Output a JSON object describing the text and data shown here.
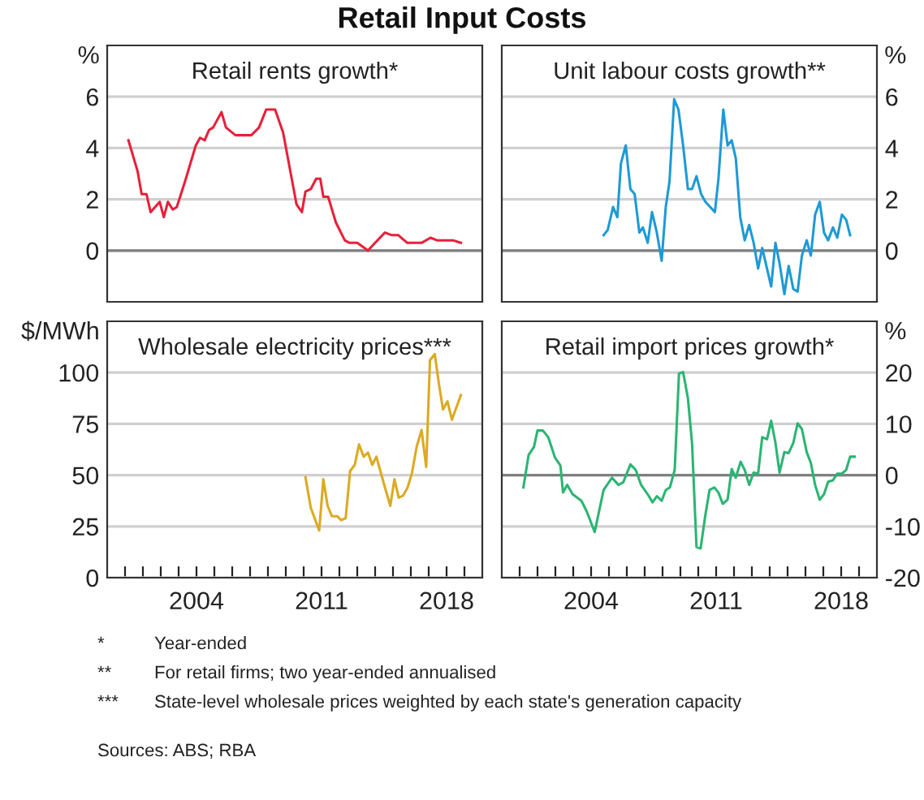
{
  "chart_data": [
    {
      "type": "line",
      "title": "Retail rents growth*",
      "ylabel": "%",
      "annotations": [
        "Retail Input Costs"
      ],
      "series": [
        {
          "color": "#e8203a",
          "x": [
            2000.19,
            2000.7,
            2000.93,
            2001.2,
            2001.43,
            2001.94,
            2002.17,
            2002.4,
            2002.67,
            2002.9,
            2003.36,
            2003.96,
            2004.2,
            2004.46,
            2004.7,
            2004.93,
            2005.4,
            2005.65,
            2006.18,
            2007.07,
            2007.5,
            2007.9,
            2008.4,
            2008.85,
            2009.6,
            2009.9,
            2010.1,
            2010.4,
            2010.7,
            2010.93,
            2011.1,
            2011.37,
            2011.8,
            2012.3,
            2012.56,
            2013.0,
            2013.6,
            2014.0,
            2014.55,
            2014.93,
            2015.3,
            2015.8,
            2016.6,
            2017.1,
            2017.46,
            2017.9,
            2018.35,
            2018.8
          ],
          "values": [
            4.3,
            3.1,
            2.2,
            2.2,
            1.5,
            1.9,
            1.3,
            1.9,
            1.6,
            1.7,
            2.7,
            4.1,
            4.4,
            4.3,
            4.7,
            4.8,
            5.4,
            4.8,
            4.5,
            4.5,
            4.8,
            5.5,
            5.5,
            4.6,
            1.8,
            1.5,
            2.3,
            2.4,
            2.8,
            2.8,
            2.1,
            2.1,
            1.1,
            0.4,
            0.3,
            0.3,
            0.0,
            0.3,
            0.7,
            0.6,
            0.6,
            0.3,
            0.3,
            0.5,
            0.4,
            0.4,
            0.4,
            0.3
          ]
        }
      ],
      "xlim": [
        1999,
        2020
      ],
      "ylim": [
        -2,
        8
      ],
      "yticks": [
        0,
        2,
        4,
        6
      ],
      "grid": "y",
      "tick_labels": "y",
      "ref_lines": [
        {
          "axis": "y",
          "value": 0,
          "color": "#808080"
        }
      ]
    },
    {
      "type": "line",
      "title": "Unit labour costs growth**",
      "ylabel": "%",
      "series": [
        {
          "color": "#1e9ad6",
          "x": [
            2004.7,
            2004.93,
            2005.23,
            2005.47,
            2005.67,
            2005.94,
            2006.2,
            2006.44,
            2006.7,
            2006.9,
            2007.17,
            2007.41,
            2007.68,
            2007.95,
            2008.18,
            2008.39,
            2008.65,
            2008.89,
            2009.15,
            2009.42,
            2009.65,
            2009.9,
            2010.16,
            2010.4,
            2010.93,
            2011.13,
            2011.4,
            2011.64,
            2011.87,
            2012.1,
            2012.35,
            2012.6,
            2012.85,
            2013.1,
            2013.35,
            2013.58,
            2014.08,
            2014.32,
            2014.55,
            2014.82,
            2015.06,
            2015.32,
            2015.56,
            2015.8,
            2016.07,
            2016.3,
            2016.54,
            2016.8,
            2017.04,
            2017.27,
            2017.54,
            2017.78,
            2018.04,
            2018.28,
            2018.5
          ],
          "values": [
            0.6,
            0.8,
            1.7,
            1.3,
            3.4,
            4.1,
            2.4,
            2.2,
            0.7,
            0.9,
            0.3,
            1.5,
            0.7,
            -0.4,
            1.7,
            2.7,
            5.9,
            5.5,
            4.1,
            2.4,
            2.4,
            2.9,
            2.2,
            1.9,
            1.5,
            2.8,
            5.5,
            4.1,
            4.3,
            3.6,
            1.3,
            0.4,
            1.0,
            0.3,
            -0.7,
            0.1,
            -1.4,
            0.3,
            -0.5,
            -1.7,
            -0.6,
            -1.5,
            -1.6,
            -0.2,
            0.4,
            -0.2,
            1.4,
            1.9,
            0.7,
            0.4,
            0.9,
            0.5,
            1.4,
            1.2,
            0.6
          ]
        }
      ],
      "xlim": [
        1999,
        2020
      ],
      "ylim": [
        -2,
        8
      ],
      "yticks": [
        0,
        2,
        4,
        6
      ],
      "grid": "y",
      "tick_labels": "y",
      "ref_lines": [
        {
          "axis": "y",
          "value": 0,
          "color": "#808080"
        }
      ]
    },
    {
      "type": "line",
      "title": "Wholesale electricity prices***",
      "ylabel": "$/MWh",
      "series": [
        {
          "color": "#dcaa22",
          "x": [
            2010.1,
            2010.4,
            2010.87,
            2011.1,
            2011.34,
            2011.58,
            2011.88,
            2012.1,
            2012.35,
            2012.6,
            2012.86,
            2013.1,
            2013.36,
            2013.6,
            2013.84,
            2014.07,
            2014.55,
            2014.85,
            2015.08,
            2015.32,
            2015.56,
            2015.82,
            2016.06,
            2016.33,
            2016.6,
            2016.86,
            2017.07,
            2017.34,
            2017.58,
            2017.8,
            2018.05,
            2018.3,
            2018.8
          ],
          "values": [
            49,
            34,
            23,
            48,
            35,
            30,
            30,
            28,
            29,
            52,
            55,
            65,
            59,
            61,
            55,
            59,
            44,
            35,
            48,
            39,
            40,
            44,
            51,
            64,
            72,
            54,
            106,
            109,
            94,
            82,
            86,
            77,
            89
          ]
        }
      ],
      "xlim": [
        1999,
        2020
      ],
      "ylim": [
        0,
        125
      ],
      "yticks": [
        0,
        25,
        50,
        75,
        100
      ],
      "grid": "y",
      "xticks": [
        {
          "value": 2000,
          "label": null
        },
        {
          "value": 2001,
          "label": null
        },
        {
          "value": 2002,
          "label": null
        },
        {
          "value": 2003,
          "label": null
        },
        2004,
        {
          "value": 2005,
          "label": null
        },
        {
          "value": 2006,
          "label": null
        },
        {
          "value": 2007,
          "label": null
        },
        {
          "value": 2008,
          "label": null
        },
        {
          "value": 2009,
          "label": null
        },
        {
          "value": 2010,
          "label": null
        },
        2011,
        {
          "value": 2012,
          "label": null
        },
        {
          "value": 2013,
          "label": null
        },
        {
          "value": 2014,
          "label": null
        },
        {
          "value": 2015,
          "label": null
        },
        {
          "value": 2016,
          "label": null
        },
        {
          "value": 2017,
          "label": null
        },
        2018,
        {
          "value": 2019,
          "label": null
        }
      ]
    },
    {
      "type": "line",
      "title": "Retail import prices growth*",
      "ylabel": "%",
      "annotations": [
        "* Year-ended",
        "** For retail firms; two year-ended annualised",
        "*** State-level wholesale prices weighted by each state's generation capacity",
        "Sources: ABS; RBA"
      ],
      "series": [
        {
          "color": "#2bb573",
          "x": [
            2000.21,
            2000.5,
            2000.8,
            2001.0,
            2001.3,
            2001.6,
            2001.98,
            2002.28,
            2002.43,
            2002.66,
            2002.96,
            2003.46,
            2003.76,
            2004.2,
            2004.7,
            2005.17,
            2005.53,
            2005.8,
            2006.2,
            2006.5,
            2006.8,
            2007.2,
            2007.44,
            2007.68,
            2007.95,
            2008.18,
            2008.41,
            2008.68,
            2008.92,
            2009.15,
            2009.42,
            2009.65,
            2009.9,
            2010.13,
            2010.4,
            2010.63,
            2010.9,
            2011.13,
            2011.37,
            2011.64,
            2011.87,
            2012.1,
            2012.37,
            2012.6,
            2012.85,
            2013.1,
            2013.35,
            2013.58,
            2013.85,
            2014.08,
            2014.32,
            2014.55,
            2014.82,
            2015.06,
            2015.32,
            2015.56,
            2015.8,
            2016.07,
            2016.3,
            2016.54,
            2016.8,
            2017.04,
            2017.27,
            2017.54,
            2017.78,
            2018.04,
            2018.28,
            2018.5,
            2018.75
          ],
          "values": [
            -2.4,
            3.9,
            5.5,
            8.7,
            8.7,
            7.4,
            3.4,
            1.9,
            -3.4,
            -1.9,
            -3.7,
            -5.0,
            -7.1,
            -11.1,
            -2.9,
            -0.5,
            -1.9,
            -1.4,
            2.1,
            1.0,
            -1.9,
            -3.9,
            -5.3,
            -4.1,
            -5.0,
            -2.9,
            -2.4,
            1.0,
            19.8,
            20.1,
            15.0,
            6.3,
            -14.0,
            -14.3,
            -7.7,
            -2.9,
            -2.4,
            -3.4,
            -5.6,
            -4.8,
            1.2,
            -0.5,
            2.6,
            1.0,
            -1.9,
            0.5,
            0.3,
            7.4,
            7.0,
            10.6,
            6.3,
            0.5,
            4.5,
            4.3,
            6.3,
            10.1,
            9.0,
            4.5,
            2.4,
            -1.9,
            -4.8,
            -3.7,
            -1.3,
            -1.0,
            0.3,
            0.3,
            1.0,
            3.6,
            3.6
          ]
        }
      ],
      "xlim": [
        1999,
        2020
      ],
      "ylim": [
        -20,
        30
      ],
      "yticks": [
        -20,
        -10,
        0,
        10,
        20
      ],
      "grid": "y",
      "xticks": [
        {
          "value": 2000,
          "label": null
        },
        {
          "value": 2001,
          "label": null
        },
        {
          "value": 2002,
          "label": null
        },
        {
          "value": 2003,
          "label": null
        },
        2004,
        {
          "value": 2005,
          "label": null
        },
        {
          "value": 2006,
          "label": null
        },
        {
          "value": 2007,
          "label": null
        },
        {
          "value": 2008,
          "label": null
        },
        {
          "value": 2009,
          "label": null
        },
        {
          "value": 2010,
          "label": null
        },
        2011,
        {
          "value": 2012,
          "label": null
        },
        {
          "value": 2013,
          "label": null
        },
        {
          "value": 2014,
          "label": null
        },
        {
          "value": 2015,
          "label": null
        },
        {
          "value": 2016,
          "label": null
        },
        {
          "value": 2017,
          "label": null
        },
        2018,
        {
          "value": 2019,
          "label": null
        }
      ],
      "ref_lines": [
        {
          "axis": "y",
          "value": 0,
          "color": "#808080"
        }
      ]
    }
  ]
}
